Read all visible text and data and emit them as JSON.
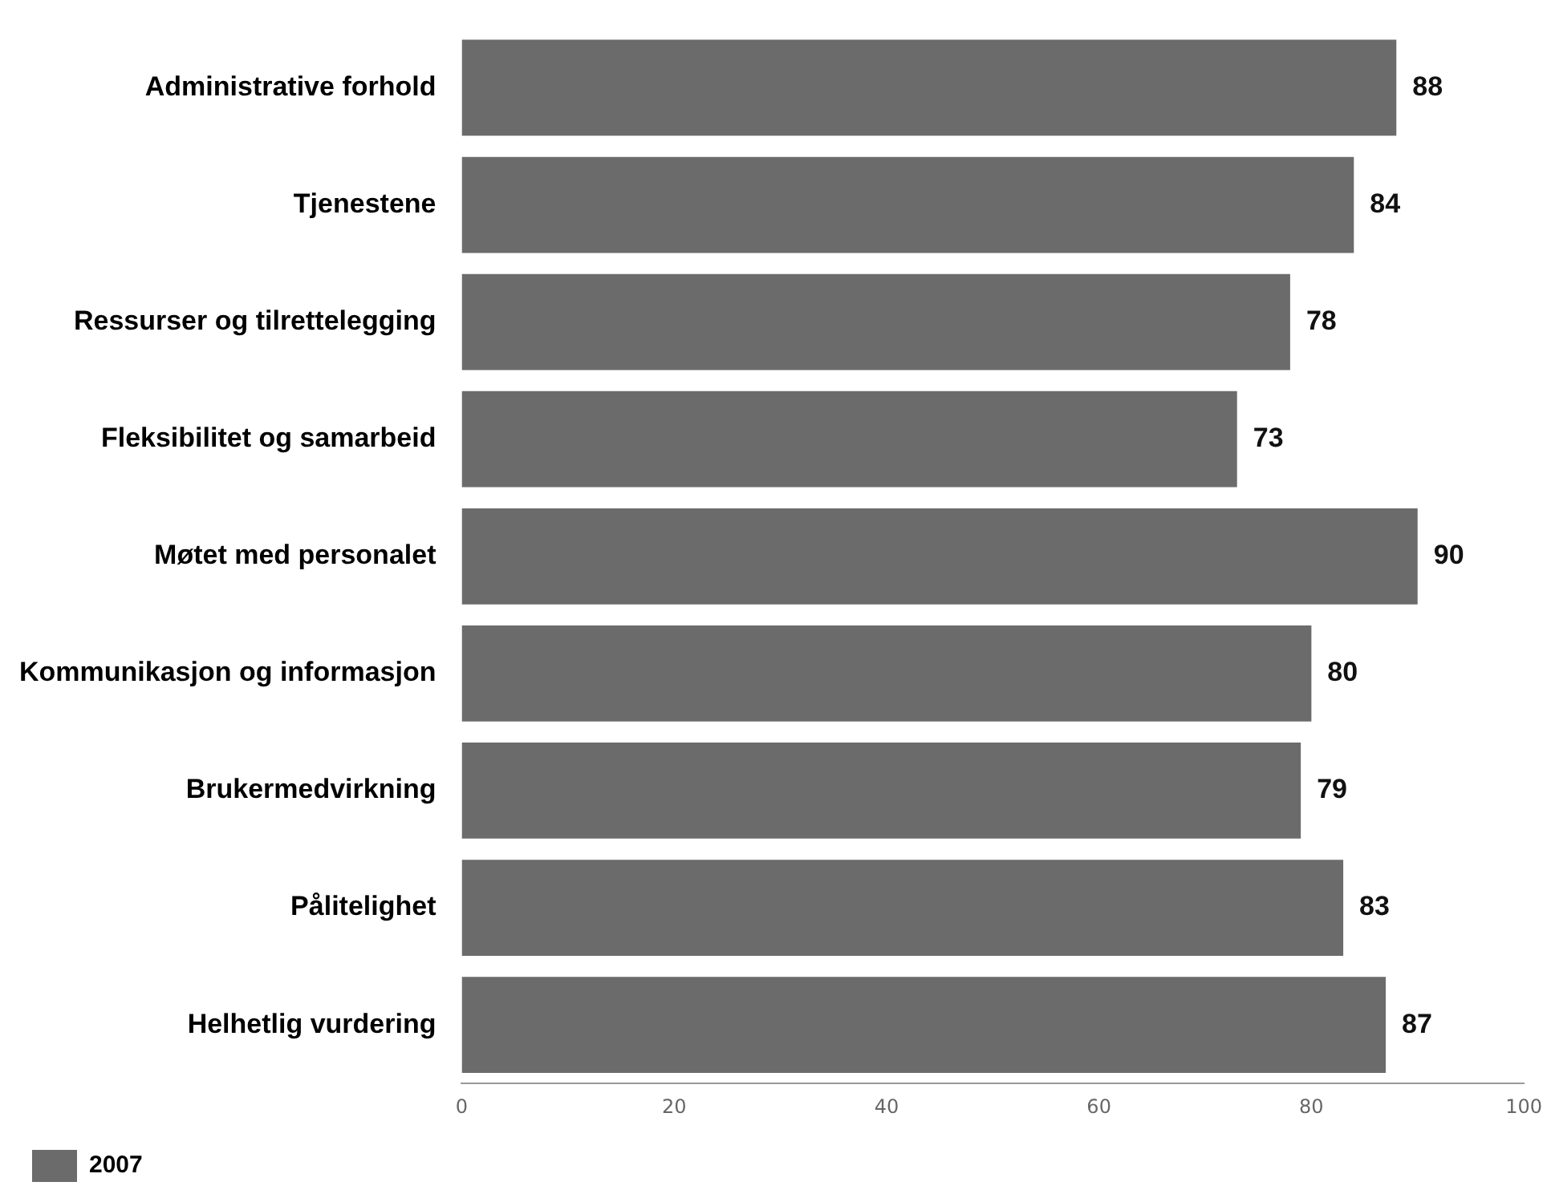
{
  "chart_data": {
    "type": "bar",
    "orientation": "horizontal",
    "categories": [
      "Administrative forhold",
      "Tjenestene",
      "Ressurser og tilrettelegging",
      "Fleksibilitet og samarbeid",
      "Møtet med personalet",
      "Kommunikasjon og informasjon",
      "Brukermedvirkning",
      "Pålitelighet",
      "Helhetlig vurdering"
    ],
    "series": [
      {
        "name": "2007",
        "color": "#6b6b6b",
        "values": [
          88,
          84,
          78,
          73,
          90,
          80,
          79,
          83,
          87
        ]
      }
    ],
    "xlim": [
      0,
      100
    ],
    "xticks": [
      0,
      20,
      40,
      60,
      80,
      100
    ],
    "grid": false,
    "legend": "bottom",
    "data_labels": true
  }
}
